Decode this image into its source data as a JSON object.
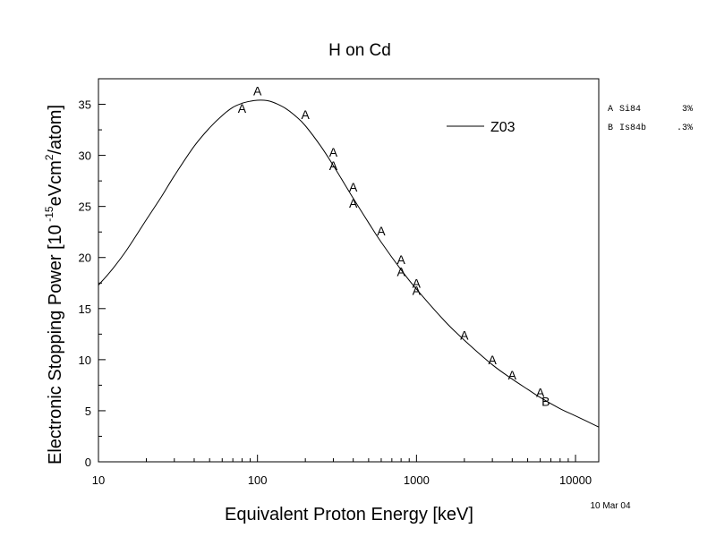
{
  "chart_data": {
    "type": "scatter",
    "title": "H on Cd",
    "xlabel": "Equivalent Proton Energy [keV]",
    "ylabel": {
      "pre": "Electronic Stopping Power [10",
      "exp1": " -15",
      "mid": "eVcm",
      "exp2": "2",
      "post": "/atom]"
    },
    "x_scale": "log",
    "xlim": [
      10,
      14000
    ],
    "ylim": [
      0,
      37.5
    ],
    "x_ticks": [
      {
        "value": 10,
        "label": "10"
      },
      {
        "value": 100,
        "label": "100"
      },
      {
        "value": 1000,
        "label": "1000"
      },
      {
        "value": 10000,
        "label": "10000"
      }
    ],
    "y_ticks": [
      {
        "value": 0,
        "label": "0"
      },
      {
        "value": 5,
        "label": "5"
      },
      {
        "value": 10,
        "label": "10"
      },
      {
        "value": 15,
        "label": "15"
      },
      {
        "value": 20,
        "label": "20"
      },
      {
        "value": 25,
        "label": "25"
      },
      {
        "value": 30,
        "label": "30"
      },
      {
        "value": 35,
        "label": "35"
      }
    ],
    "curve": {
      "name": "Z03",
      "x": [
        10,
        12,
        15,
        20,
        25,
        30,
        40,
        50,
        60,
        70,
        80,
        90,
        100,
        110,
        120,
        130,
        150,
        175,
        200,
        250,
        300,
        400,
        500,
        600,
        800,
        1000,
        1500,
        2000,
        3000,
        4000,
        5000,
        6000,
        8000,
        10000,
        14000
      ],
      "y": [
        17.3,
        18.7,
        20.7,
        23.7,
        26.0,
        28.0,
        30.9,
        32.7,
        33.9,
        34.7,
        35.1,
        35.3,
        35.4,
        35.4,
        35.3,
        35.1,
        34.6,
        33.8,
        32.9,
        30.9,
        29.0,
        25.8,
        23.4,
        21.5,
        18.8,
        16.9,
        13.8,
        11.9,
        9.5,
        8.1,
        7.1,
        6.3,
        5.2,
        4.5,
        3.4
      ]
    },
    "points": [
      {
        "marker": "A",
        "x": 80,
        "y": 34.6
      },
      {
        "marker": "A",
        "x": 100,
        "y": 36.3
      },
      {
        "marker": "A",
        "x": 200,
        "y": 34.0
      },
      {
        "marker": "A",
        "x": 300,
        "y": 30.3
      },
      {
        "marker": "A",
        "x": 300,
        "y": 29.0
      },
      {
        "marker": "A",
        "x": 400,
        "y": 26.9
      },
      {
        "marker": "A",
        "x": 400,
        "y": 25.3
      },
      {
        "marker": "A",
        "x": 600,
        "y": 22.6
      },
      {
        "marker": "A",
        "x": 800,
        "y": 19.8
      },
      {
        "marker": "A",
        "x": 800,
        "y": 18.6
      },
      {
        "marker": "A",
        "x": 1000,
        "y": 17.5
      },
      {
        "marker": "A",
        "x": 1000,
        "y": 16.8
      },
      {
        "marker": "A",
        "x": 2000,
        "y": 12.4
      },
      {
        "marker": "A",
        "x": 3000,
        "y": 10.0
      },
      {
        "marker": "A",
        "x": 4000,
        "y": 8.5
      },
      {
        "marker": "A",
        "x": 6000,
        "y": 6.8
      },
      {
        "marker": "B",
        "x": 6500,
        "y": 5.9
      }
    ],
    "legend": {
      "placement": "top-right",
      "label": "Z03"
    },
    "references": [
      {
        "letter": "A",
        "name": "Si84",
        "error": "3%"
      },
      {
        "letter": "B",
        "name": "Is84b",
        "error": ".3%"
      }
    ],
    "date": "10 Mar 04",
    "grid": false
  }
}
